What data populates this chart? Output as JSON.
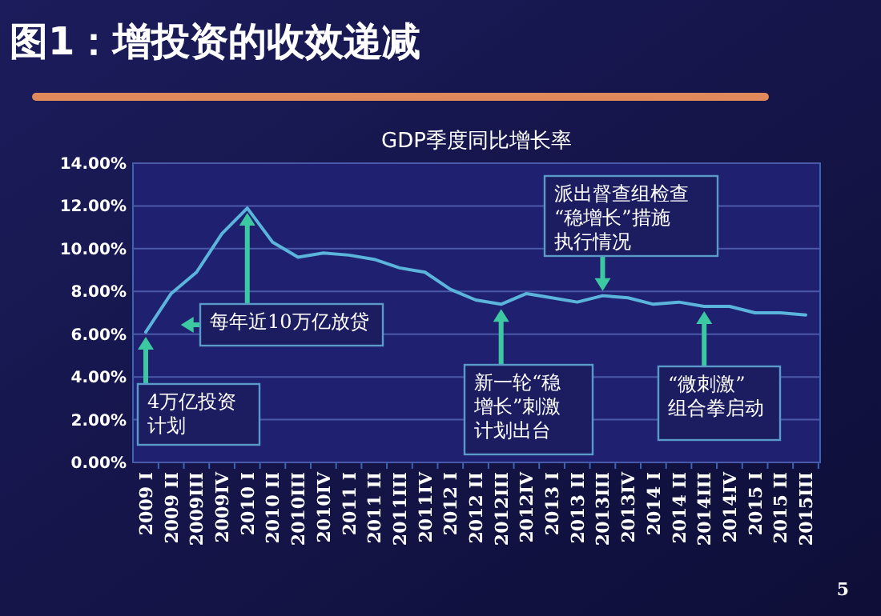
{
  "chart_data": {
    "type": "line",
    "title": "图1：增投资的收效递减",
    "subtitle": "GDP季度同比增长率",
    "categories": [
      "2009 I",
      "2009 II",
      "2009III",
      "2009IV",
      "2010 I",
      "2010 II",
      "2010III",
      "2010IV",
      "2011 I",
      "2011 II",
      "2011III",
      "2011IV",
      "2012 I",
      "2012 II",
      "2012III",
      "2012IV",
      "2013 I",
      "2013 II",
      "2013III",
      "2013IV",
      "2014 I",
      "2014 II",
      "2014III",
      "2014IV",
      "2015 I",
      "2015 II",
      "2015III"
    ],
    "series": [
      {
        "color": "#5ab4dc",
        "values": [
          6.1,
          7.9,
          8.9,
          10.7,
          11.9,
          10.3,
          9.6,
          9.8,
          9.7,
          9.5,
          9.1,
          8.9,
          8.1,
          7.6,
          7.4,
          7.9,
          7.7,
          7.5,
          7.8,
          7.7,
          7.4,
          7.5,
          7.3,
          7.3,
          7.0,
          7.0,
          6.9
        ]
      }
    ],
    "ylim": [
      0,
      14
    ],
    "yticks": [
      {
        "value": 0,
        "label": "0.00%"
      },
      {
        "value": 2,
        "label": "2.00%"
      },
      {
        "value": 4,
        "label": "4.00%"
      },
      {
        "value": 6,
        "label": "6.00%"
      },
      {
        "value": 8,
        "label": "8.00%"
      },
      {
        "value": 10,
        "label": "10.00%"
      },
      {
        "value": 12,
        "label": "12.00%"
      },
      {
        "value": 14,
        "label": "14.00%"
      }
    ],
    "grid": "y",
    "marker": "none",
    "line_style": "solid",
    "annotations": [
      {
        "text": "4万亿投资计划",
        "x": "2009 I",
        "y": 6.1
      },
      {
        "text": "每年近10万亿放贷",
        "x": "2010 I",
        "y": 11.9
      },
      {
        "text": "新一轮“稳增长”刺激计划出台",
        "x": "2012III",
        "y": 7.4
      },
      {
        "text": "派出督查组检查“稳增长”措施执行情况",
        "x": "2013III",
        "y": 7.8
      },
      {
        "text": "“微刺激”组合拳启动",
        "x": "2014III",
        "y": 7.3
      },
      "5"
    ]
  }
}
